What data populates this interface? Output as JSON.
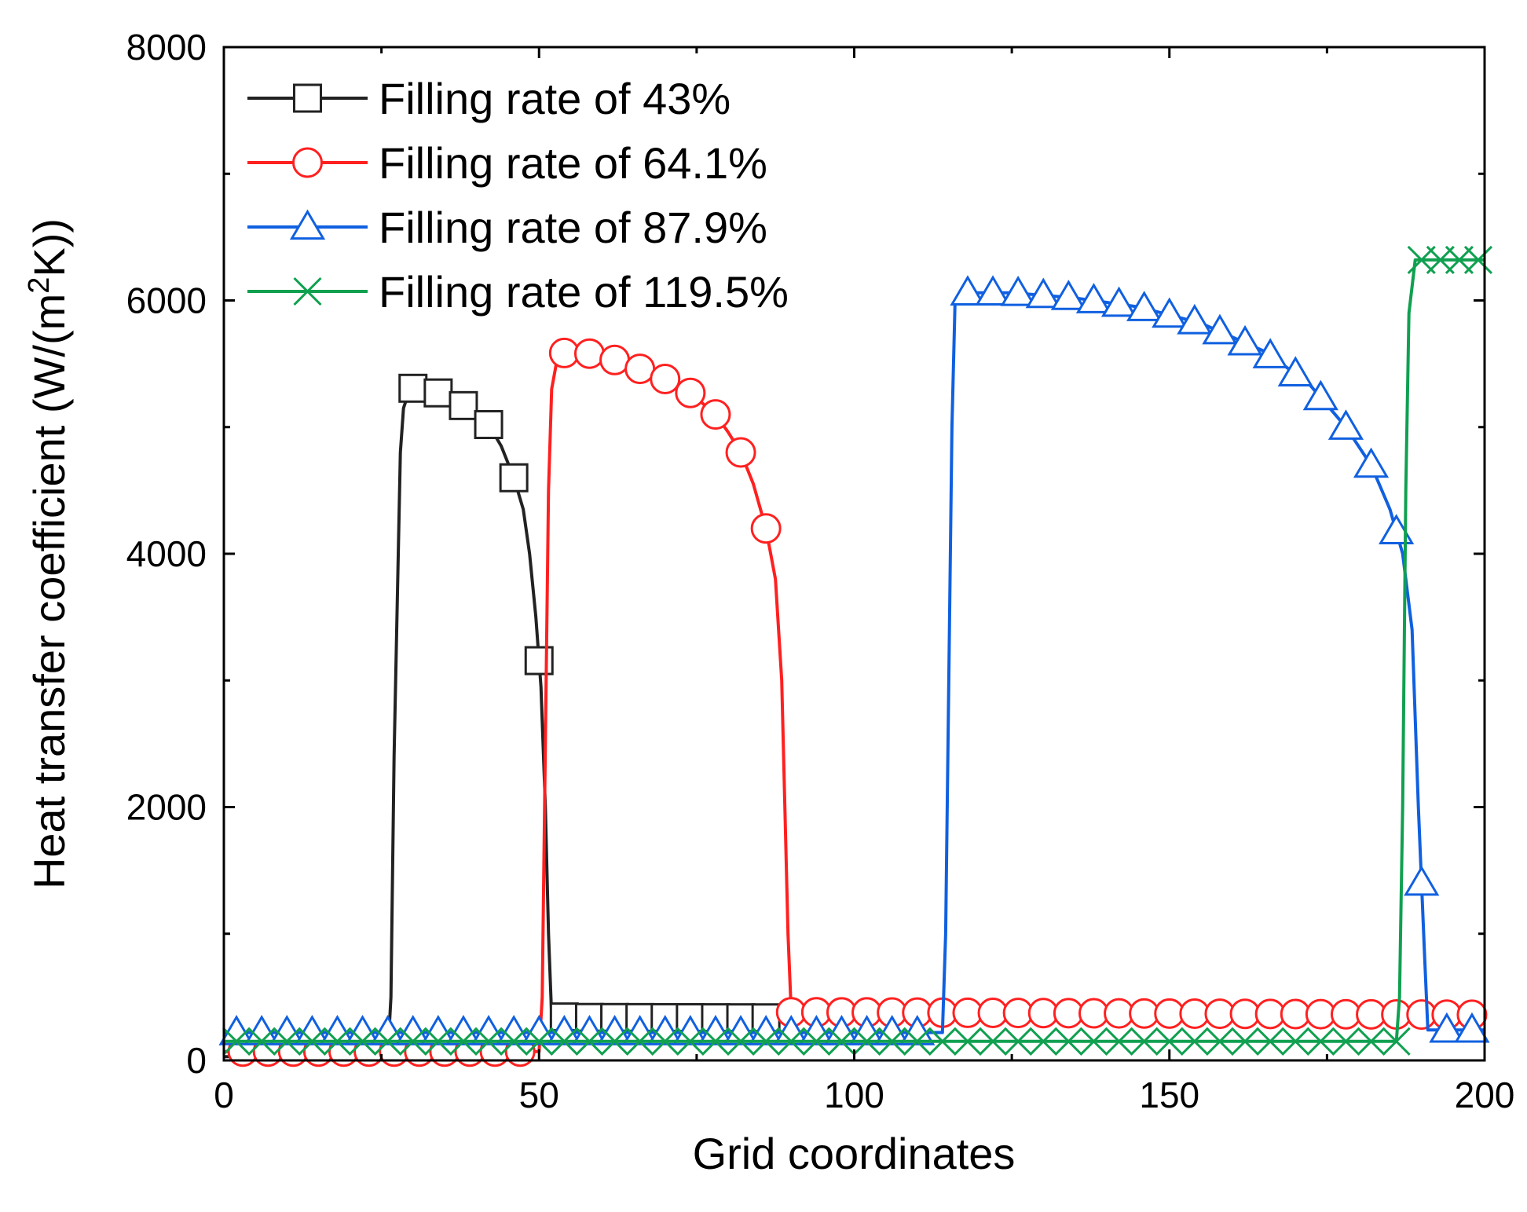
{
  "chart_data": {
    "type": "line",
    "title": "",
    "xlabel": "Grid coordinates",
    "ylabel_main": "Heat transfer coefficient (W/(m",
    "ylabel_sup": "2",
    "ylabel_end": "K))",
    "xlim": [
      0,
      200
    ],
    "ylim": [
      0,
      8000
    ],
    "xticks": [
      0,
      50,
      100,
      150,
      200
    ],
    "yticks": [
      0,
      2000,
      4000,
      6000,
      8000
    ],
    "xtick_labels": [
      "0",
      "50",
      "100",
      "150",
      "200"
    ],
    "ytick_labels": [
      "0",
      "2000",
      "4000",
      "6000",
      "8000"
    ],
    "grid": false,
    "legend_position": "top-left",
    "series": [
      {
        "name": "Filling rate of 43%",
        "color": "#222222",
        "marker": "square",
        "points": [
          [
            0,
            30
          ],
          [
            26,
            30
          ],
          [
            26.5,
            500
          ],
          [
            27,
            2400
          ],
          [
            27.5,
            3600
          ],
          [
            28,
            4800
          ],
          [
            28.5,
            5150
          ],
          [
            29.5,
            5300
          ],
          [
            31,
            5320
          ],
          [
            34,
            5270
          ],
          [
            38,
            5170
          ],
          [
            42,
            5020
          ],
          [
            44,
            4850
          ],
          [
            46,
            4600
          ],
          [
            47.5,
            4350
          ],
          [
            48.5,
            4000
          ],
          [
            49.5,
            3500
          ],
          [
            50.3,
            2950
          ],
          [
            51,
            2000
          ],
          [
            51.5,
            1000
          ],
          [
            52,
            350
          ],
          [
            55,
            340
          ],
          [
            100,
            335
          ],
          [
            150,
            330
          ],
          [
            200,
            330
          ]
        ],
        "marker_x": [
          30,
          34,
          38,
          42,
          46,
          50,
          54,
          58,
          62,
          66,
          70,
          74,
          78,
          82,
          86
        ]
      },
      {
        "name": "Filling rate of 64.1%",
        "color": "#ff2020",
        "marker": "circle",
        "points": [
          [
            0,
            70
          ],
          [
            50,
            70
          ],
          [
            50.5,
            500
          ],
          [
            51,
            2500
          ],
          [
            51.5,
            4500
          ],
          [
            52,
            5300
          ],
          [
            53,
            5570
          ],
          [
            55,
            5600
          ],
          [
            58,
            5580
          ],
          [
            62,
            5530
          ],
          [
            66,
            5460
          ],
          [
            70,
            5380
          ],
          [
            74,
            5270
          ],
          [
            78,
            5100
          ],
          [
            80,
            4960
          ],
          [
            82,
            4800
          ],
          [
            84,
            4550
          ],
          [
            86,
            4200
          ],
          [
            87.5,
            3800
          ],
          [
            88.5,
            3000
          ],
          [
            89,
            2000
          ],
          [
            89.5,
            1000
          ],
          [
            90,
            380
          ],
          [
            95,
            380
          ],
          [
            150,
            370
          ],
          [
            200,
            360
          ]
        ],
        "marker_x": [
          3,
          7,
          11,
          15,
          19,
          23,
          27,
          31,
          35,
          39,
          43,
          47,
          54,
          58,
          62,
          66,
          70,
          74,
          78,
          82,
          86,
          90,
          94,
          98,
          102,
          106,
          110,
          114,
          118,
          122,
          126,
          130,
          134,
          138,
          142,
          146,
          150,
          154,
          158,
          162,
          166,
          170,
          174,
          178,
          182,
          186,
          190,
          194,
          198
        ]
      },
      {
        "name": "Filling rate of 87.9%",
        "color": "#1060e0",
        "marker": "triangle",
        "points": [
          [
            0,
            220
          ],
          [
            114,
            220
          ],
          [
            114.5,
            1000
          ],
          [
            115,
            3000
          ],
          [
            115.5,
            5000
          ],
          [
            116,
            6000
          ],
          [
            118,
            6060
          ],
          [
            125,
            6060
          ],
          [
            135,
            6020
          ],
          [
            145,
            5950
          ],
          [
            155,
            5820
          ],
          [
            165,
            5600
          ],
          [
            172,
            5350
          ],
          [
            178,
            5000
          ],
          [
            182,
            4700
          ],
          [
            185,
            4350
          ],
          [
            187,
            4000
          ],
          [
            188.5,
            3400
          ],
          [
            189.5,
            2000
          ],
          [
            190.5,
            800
          ],
          [
            191,
            240
          ],
          [
            200,
            240
          ]
        ],
        "marker_x": [
          2,
          6,
          10,
          14,
          18,
          22,
          26,
          30,
          34,
          38,
          42,
          46,
          50,
          54,
          58,
          62,
          66,
          70,
          74,
          78,
          82,
          86,
          90,
          94,
          98,
          102,
          106,
          110,
          118,
          122,
          126,
          130,
          134,
          138,
          142,
          146,
          150,
          154,
          158,
          162,
          166,
          170,
          174,
          178,
          182,
          186,
          190,
          194,
          198
        ]
      },
      {
        "name": "Filling rate of 119.5%",
        "color": "#10a050",
        "marker": "x",
        "points": [
          [
            0,
            150
          ],
          [
            186,
            150
          ],
          [
            186.5,
            500
          ],
          [
            187,
            2000
          ],
          [
            187.5,
            4500
          ],
          [
            188,
            5900
          ],
          [
            189,
            6320
          ],
          [
            192,
            6320
          ],
          [
            200,
            6320
          ]
        ],
        "marker_x": [
          2,
          6,
          10,
          14,
          18,
          22,
          26,
          30,
          34,
          38,
          42,
          46,
          50,
          54,
          58,
          62,
          66,
          70,
          74,
          78,
          82,
          86,
          90,
          94,
          98,
          102,
          106,
          110,
          114,
          118,
          122,
          126,
          130,
          134,
          138,
          142,
          146,
          150,
          154,
          158,
          162,
          166,
          170,
          174,
          178,
          182,
          186,
          190,
          193,
          196,
          199
        ]
      }
    ]
  }
}
